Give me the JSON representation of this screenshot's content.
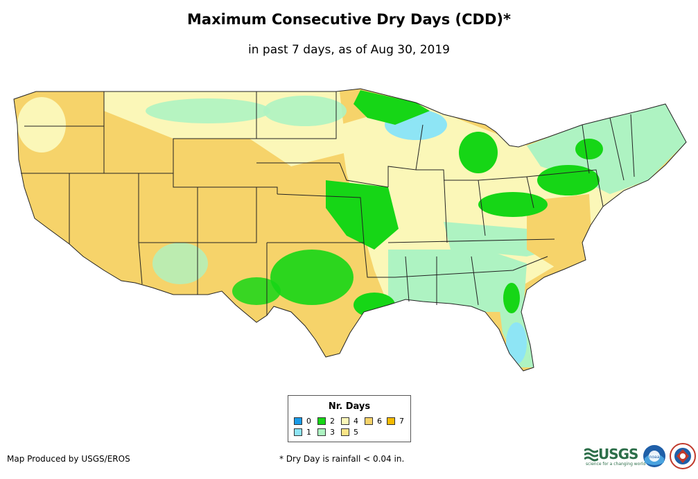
{
  "title": "Maximum Consecutive Dry Days (CDD)*",
  "subtitle": "in past 7 days, as of Aug 30, 2019",
  "legend": {
    "title": "Nr. Days",
    "items": [
      {
        "label": "0",
        "color": "#1a9be8"
      },
      {
        "label": "1",
        "color": "#8ee5f5"
      },
      {
        "label": "2",
        "color": "#16d616"
      },
      {
        "label": "3",
        "color": "#aef3c2"
      },
      {
        "label": "4",
        "color": "#fbf7b8"
      },
      {
        "label": "5",
        "color": "#fbe588"
      },
      {
        "label": "6",
        "color": "#f6d36a"
      },
      {
        "label": "7",
        "color": "#f5bb00"
      }
    ]
  },
  "credit": "Map Produced by USGS/EROS",
  "footnote": "* Dry Day is rainfall < 0.04 in.",
  "logos": {
    "usgs": "USGS",
    "usgs_tagline": "science for a changing world",
    "noaa": "noaa",
    "nws": "nws"
  }
}
